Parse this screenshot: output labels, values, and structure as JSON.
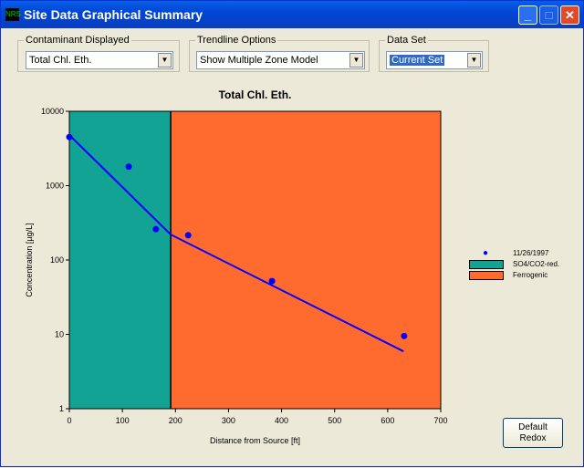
{
  "window": {
    "title": "Site Data Graphical Summary",
    "icon": "app-icon"
  },
  "controls": {
    "contaminant": {
      "label": "Contaminant Displayed",
      "value": "Total Chl. Eth."
    },
    "trendline": {
      "label": "Trendline Options",
      "value": "Show Multiple Zone Model"
    },
    "dataset": {
      "label": "Data Set",
      "value": "Current Set"
    }
  },
  "buttons": {
    "default_redox_1": "Default",
    "default_redox_2": "Redox"
  },
  "chart_data": {
    "type": "scatter",
    "title": "Total Chl. Eth.",
    "xlabel": "Distance from Source [ft]",
    "ylabel": "Concentration  [µg/L]",
    "xlim": [
      0,
      700
    ],
    "ylim": [
      1,
      10000
    ],
    "yscale": "log",
    "xticks": [
      "0",
      "100",
      "200",
      "300",
      "400",
      "500",
      "600",
      "700"
    ],
    "yticks": [
      "1",
      "10",
      "100",
      "1000",
      "10000"
    ],
    "zones": [
      {
        "name": "SO4/CO2-red.",
        "from": 0,
        "to": 191,
        "color": "#13a394"
      },
      {
        "name": "Ferrogenic",
        "from": 191,
        "to": 700,
        "color": "#ff6a2e"
      }
    ],
    "series": [
      {
        "name": "11/26/1997",
        "color": "#0000ff",
        "points": [
          [
            0,
            4500
          ],
          [
            112,
            1800
          ],
          [
            163,
            260
          ],
          [
            224,
            215
          ],
          [
            382,
            52
          ],
          [
            631,
            9.5
          ]
        ]
      }
    ],
    "trendline": {
      "color": "#0000ff",
      "points": [
        [
          0,
          4800
        ],
        [
          191,
          220
        ],
        [
          630,
          5.9
        ]
      ]
    },
    "legend": "right"
  }
}
